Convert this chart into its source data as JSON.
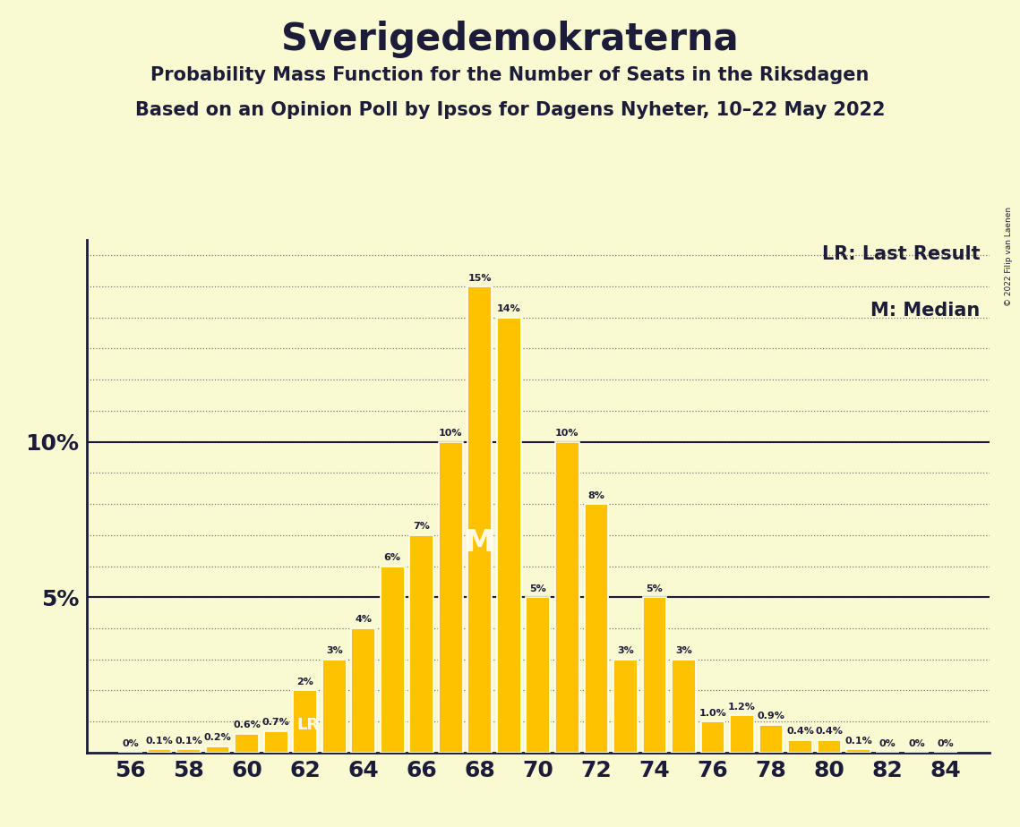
{
  "title": "Sverigedemokraterna",
  "subtitle1": "Probability Mass Function for the Number of Seats in the Riksdagen",
  "subtitle2": "Based on an Opinion Poll by Ipsos for Dagens Nyheter, 10–22 May 2022",
  "copyright": "© 2022 Filip van Laenen",
  "seats": [
    56,
    57,
    58,
    59,
    60,
    61,
    62,
    63,
    64,
    65,
    66,
    67,
    68,
    69,
    70,
    71,
    72,
    73,
    74,
    75,
    76,
    77,
    78,
    79,
    80,
    81,
    82,
    83,
    84
  ],
  "probabilities": [
    0.0,
    0.1,
    0.1,
    0.2,
    0.6,
    0.7,
    2.0,
    3.0,
    4.0,
    6.0,
    7.0,
    10.0,
    15.0,
    14.0,
    5.0,
    10.0,
    8.0,
    3.0,
    5.0,
    3.0,
    1.0,
    1.2,
    0.9,
    0.4,
    0.4,
    0.1,
    0.0,
    0.0,
    0.0
  ],
  "labels": [
    "0%",
    "0.1%",
    "0.1%",
    "0.2%",
    "0.6%",
    "0.7%",
    "2%",
    "3%",
    "4%",
    "6%",
    "7%",
    "10%",
    "15%",
    "14%",
    "5%",
    "10%",
    "8%",
    "3%",
    "5%",
    "3%",
    "1.0%",
    "1.2%",
    "0.9%",
    "0.4%",
    "0.4%",
    "0.1%",
    "0%",
    "0%",
    "0%"
  ],
  "bar_color": "#FFC200",
  "background_color": "#FAFAD2",
  "text_color": "#1C1C3A",
  "median_seat": 68,
  "last_result_seat": 62,
  "median_label": "M",
  "lr_label": "LR",
  "legend_lr": "LR: Last Result",
  "legend_m": "M: Median",
  "solid_line_color": "#1C1C3A",
  "dot_line_color": "#777777",
  "ylim_max": 16.5,
  "bar_width": 0.82
}
